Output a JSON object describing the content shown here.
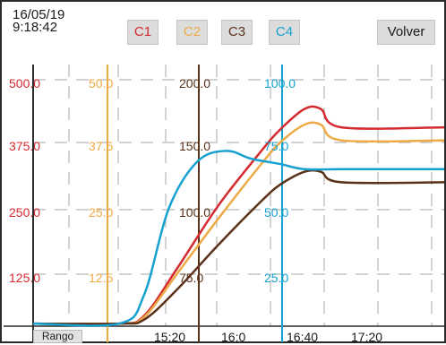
{
  "header": {
    "date": "16/05/19",
    "time": "9:18:42",
    "back_button": "Volver"
  },
  "channels": [
    {
      "label": "C1",
      "color": "#d42a2f"
    },
    {
      "label": "C2",
      "color": "#eeaa45"
    },
    {
      "label": "C3",
      "color": "#5a321a"
    },
    {
      "label": "C4",
      "color": "#16a2d0"
    }
  ],
  "range_button": "Rango",
  "colors": {
    "grid": "#b8b8b8",
    "axis": "#2b2b2b"
  },
  "chart_data": {
    "type": "line",
    "x_tick_labels": [
      "15:20",
      "16:0",
      "16:40",
      "17:20"
    ],
    "y_axes": [
      {
        "channel": "C1",
        "color": "#d42a2f",
        "ticks": [
          "500.0",
          "375.0",
          "250.0",
          "125.0"
        ]
      },
      {
        "channel": "C2",
        "color": "#eeaa45",
        "ticks": [
          "50.0",
          "37.5",
          "25.0",
          "12.5"
        ]
      },
      {
        "channel": "C3",
        "color": "#5a321a",
        "ticks": [
          "200.0",
          "150.0",
          "100.0",
          "75.0"
        ]
      },
      {
        "channel": "C4",
        "color": "#16a2d0",
        "ticks": [
          "100.0",
          "75.0",
          "50.0",
          "25.0"
        ]
      }
    ],
    "grid": true,
    "series": [
      {
        "channel": "C1",
        "color": "#d42a2f",
        "x": [
          0,
          0.21,
          0.27,
          0.35,
          0.45,
          0.55,
          0.6,
          0.66,
          0.7,
          0.75,
          1.0
        ],
        "y": [
          0.01,
          0.01,
          0.04,
          0.22,
          0.46,
          0.66,
          0.75,
          0.83,
          0.83,
          0.76,
          0.76
        ]
      },
      {
        "channel": "C2",
        "color": "#eeaa45",
        "x": [
          0,
          0.21,
          0.27,
          0.35,
          0.45,
          0.55,
          0.6,
          0.66,
          0.7,
          0.75,
          1.0
        ],
        "y": [
          0.01,
          0.01,
          0.035,
          0.2,
          0.41,
          0.61,
          0.7,
          0.77,
          0.77,
          0.71,
          0.71
        ]
      },
      {
        "channel": "C3",
        "color": "#5a321a",
        "x": [
          0,
          0.21,
          0.27,
          0.35,
          0.45,
          0.55,
          0.6,
          0.66,
          0.7,
          0.75,
          1.0
        ],
        "y": [
          0.01,
          0.01,
          0.025,
          0.14,
          0.31,
          0.47,
          0.54,
          0.59,
          0.59,
          0.55,
          0.55
        ]
      },
      {
        "channel": "C4",
        "color": "#16a2d0",
        "x": [
          0,
          0.21,
          0.27,
          0.33,
          0.4,
          0.47,
          0.53,
          0.6,
          0.66,
          0.75,
          1.0
        ],
        "y": [
          0.01,
          0.01,
          0.12,
          0.45,
          0.63,
          0.67,
          0.64,
          0.62,
          0.6,
          0.6,
          0.6
        ]
      }
    ]
  }
}
